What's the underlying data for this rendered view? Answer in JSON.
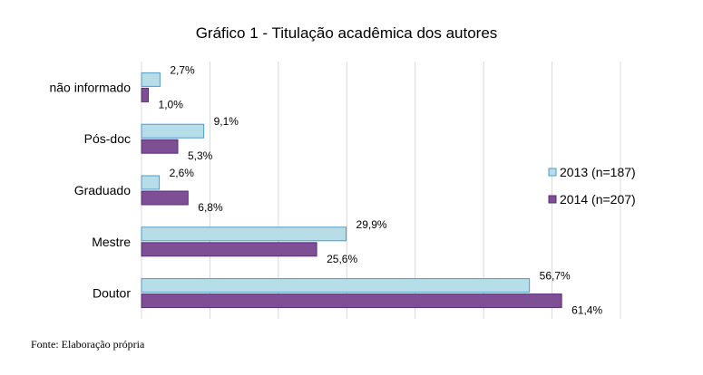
{
  "chart_data": {
    "type": "bar",
    "orientation": "horizontal",
    "title": "Gráfico  1 -  Titulação acadêmica dos autores",
    "categories": [
      "não informado",
      "Pós-doc",
      "Graduado",
      "Mestre",
      "Doutor"
    ],
    "series": [
      {
        "name": "2013 (n=187)",
        "values": [
          2.7,
          9.1,
          2.6,
          29.9,
          56.7
        ],
        "labels": [
          "2,7%",
          "9,1%",
          "2,6%",
          "29,9%",
          "56,7%"
        ],
        "color": "#b7dde8"
      },
      {
        "name": "2014 (n=207)",
        "values": [
          1.0,
          5.3,
          6.8,
          25.6,
          61.4
        ],
        "labels": [
          "1,0%",
          "5,3%",
          "6,8%",
          "25,6%",
          "61,4%"
        ],
        "color": "#7f4f96"
      }
    ],
    "xlim": [
      0,
      70
    ],
    "grid": true,
    "legend_position": "right"
  },
  "footer": {
    "source": "Fonte: Elaboração própria"
  }
}
